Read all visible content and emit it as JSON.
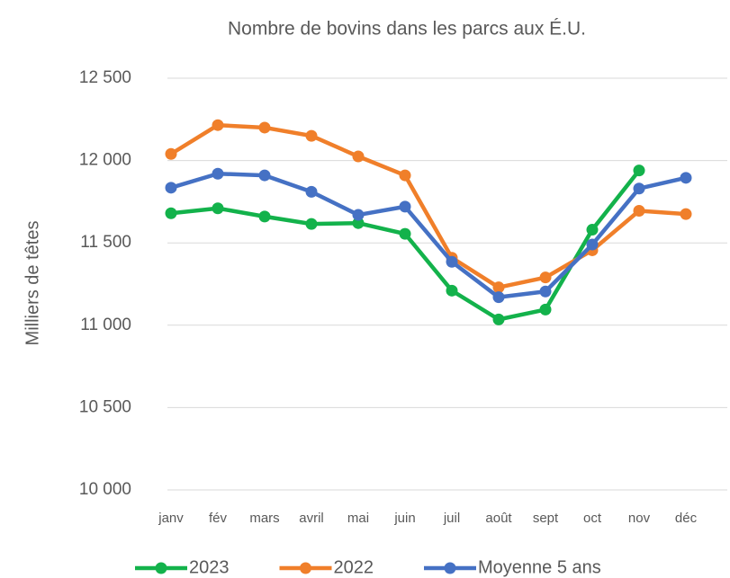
{
  "chart_data": {
    "type": "line",
    "title": "Nombre de bovins dans les parcs aux É.U.",
    "y_label": "Milliers de têtes",
    "categories": [
      "janv",
      "fév",
      "mars",
      "avril",
      "mai",
      "juin",
      "juil",
      "août",
      "sept",
      "oct",
      "nov",
      "déc"
    ],
    "series": [
      {
        "name": "2023",
        "color": "#13b24b",
        "values": [
          11680,
          11710,
          11660,
          11615,
          11620,
          11555,
          11210,
          11035,
          11095,
          11580,
          11940,
          null
        ]
      },
      {
        "name": "2022",
        "color": "#f07f2a",
        "values": [
          12040,
          12215,
          12200,
          12150,
          12025,
          11910,
          11410,
          11230,
          11290,
          11455,
          11695,
          11675
        ]
      },
      {
        "name": "Moyenne 5 ans",
        "color": "#4571c4",
        "values": [
          11835,
          11920,
          11910,
          11810,
          11670,
          11720,
          11385,
          11170,
          11205,
          11490,
          11830,
          11895
        ]
      }
    ],
    "ylim": [
      10000,
      12500
    ],
    "yticks": [
      {
        "value": 10000,
        "label": "10 000"
      },
      {
        "value": 10500,
        "label": "10 500"
      },
      {
        "value": 11000,
        "label": "11 000"
      },
      {
        "value": 11500,
        "label": "11 500"
      },
      {
        "value": 12000,
        "label": "12 000"
      },
      {
        "value": 12500,
        "label": "12 500"
      }
    ],
    "grid": true,
    "legend": "bottom"
  }
}
